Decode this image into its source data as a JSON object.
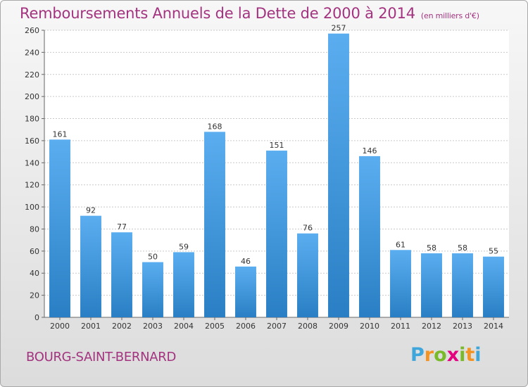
{
  "chart_data": {
    "type": "bar",
    "title": "Remboursements Annuels de la Dette de 2000 à 2014",
    "unit_note": "(en milliers d'€)",
    "categories": [
      "2000",
      "2001",
      "2002",
      "2003",
      "2004",
      "2005",
      "2006",
      "2007",
      "2008",
      "2009",
      "2010",
      "2011",
      "2012",
      "2013",
      "2014"
    ],
    "values": [
      161,
      92,
      77,
      50,
      59,
      168,
      46,
      151,
      76,
      257,
      146,
      61,
      58,
      58,
      55
    ],
    "xlabel": "",
    "ylabel": "",
    "ylim": [
      0,
      260
    ],
    "yticks": [
      0,
      20,
      40,
      60,
      80,
      100,
      120,
      140,
      160,
      180,
      200,
      220,
      240,
      260
    ],
    "grid": true,
    "bar_color": "#4a9ee0"
  },
  "footer": {
    "place": "BOURG-SAINT-BERNARD",
    "brand": "Proxiti",
    "brand_letters": [
      "P",
      "r",
      "o",
      "x",
      "i",
      "t",
      "i"
    ],
    "brand_colors": [
      "#3fa6dc",
      "#f39323",
      "#7ab929",
      "#e5007e",
      "#7ab929",
      "#f39323",
      "#3fa6dc"
    ]
  }
}
